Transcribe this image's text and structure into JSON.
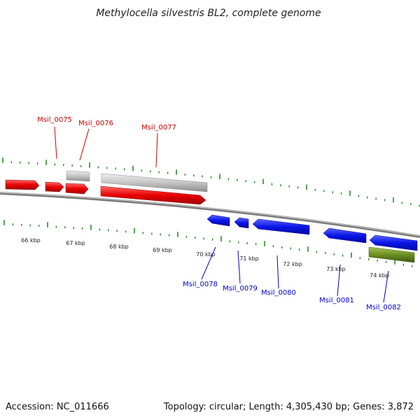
{
  "title": "Methylocella silvestris BL2, complete genome",
  "footer": {
    "accession": "Accession: NC_011666",
    "topology": "Topology: circular; Length: 4,305,430 bp; Genes: 3,872"
  },
  "colors": {
    "forward": "#e80000",
    "reverse": "#0a14e6",
    "gray_feature": "#c4c4c4",
    "olive_feature": "#6b8f22",
    "ticks": "#2a8a2a",
    "backbone": "#8a8a8a"
  },
  "ticks": {
    "labels": [
      "66 kbp",
      "67 kbp",
      "68 kbp",
      "69 kbp",
      "70 kbp",
      "71 kbp",
      "72 kbp",
      "73 kbp",
      "74 kbp"
    ]
  },
  "genes": [
    {
      "label": "Msil_0075",
      "strand": "forward"
    },
    {
      "label": "Msil_0076",
      "strand": "forward"
    },
    {
      "label": "Msil_0077",
      "strand": "forward"
    },
    {
      "label": "Msil_0078",
      "strand": "reverse"
    },
    {
      "label": "Msil_0079",
      "strand": "reverse"
    },
    {
      "label": "Msil_0080",
      "strand": "reverse"
    },
    {
      "label": "Msil_0081",
      "strand": "reverse"
    },
    {
      "label": "Msil_0082",
      "strand": "reverse"
    }
  ]
}
